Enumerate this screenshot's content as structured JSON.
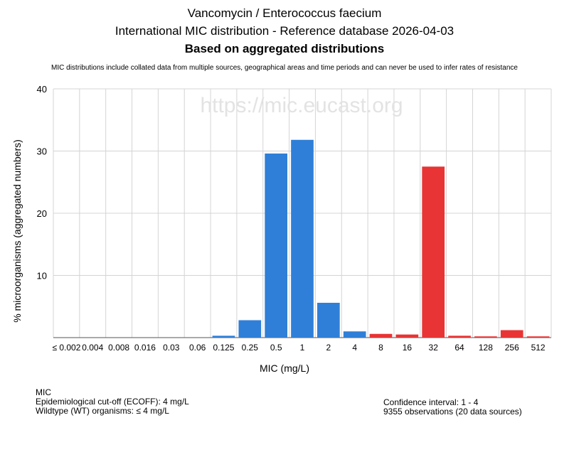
{
  "header": {
    "title": "Vancomycin / Enterococcus faecium",
    "subtitle": "International MIC distribution - Reference database 2026-04-03",
    "basis": "Based on aggregated distributions",
    "disclaimer": "MIC distributions include collated data from multiple sources, geographical areas and time periods and can never be used to infer rates of resistance"
  },
  "watermark": "https://mic.eucast.org",
  "colors": {
    "wildtype": "#2f7fd8",
    "non_wildtype": "#e83434",
    "grid": "#d4d4d4"
  },
  "chart_data": {
    "type": "bar",
    "categories": [
      "≤ 0.002",
      "0.004",
      "0.008",
      "0.016",
      "0.03",
      "0.06",
      "0.125",
      "0.25",
      "0.5",
      "1",
      "2",
      "4",
      "8",
      "16",
      "32",
      "64",
      "128",
      "256",
      "512"
    ],
    "values": [
      0,
      0,
      0,
      0,
      0,
      0,
      0.3,
      2.8,
      29.6,
      31.8,
      5.6,
      1.0,
      0.6,
      0.5,
      27.5,
      0.3,
      0.2,
      1.2,
      0.2
    ],
    "colors": [
      "#2f7fd8",
      "#2f7fd8",
      "#2f7fd8",
      "#2f7fd8",
      "#2f7fd8",
      "#2f7fd8",
      "#2f7fd8",
      "#2f7fd8",
      "#2f7fd8",
      "#2f7fd8",
      "#2f7fd8",
      "#2f7fd8",
      "#e83434",
      "#e83434",
      "#e83434",
      "#e83434",
      "#e83434",
      "#e83434",
      "#e83434"
    ],
    "xlabel": "MIC (mg/L)",
    "ylabel": "% microorganisms (aggregated numbers)",
    "ylim": [
      0,
      40
    ],
    "yticks": [
      10,
      20,
      30,
      40
    ],
    "grid": true
  },
  "footer": {
    "mic_label": "MIC",
    "ecoff": "Epidemiological cut-off (ECOFF): 4 mg/L",
    "wildtype": "Wildtype (WT) organisms: ≤ 4 mg/L",
    "confidence": "Confidence interval: 1 - 4",
    "observations": "9355 observations (20 data sources)"
  }
}
